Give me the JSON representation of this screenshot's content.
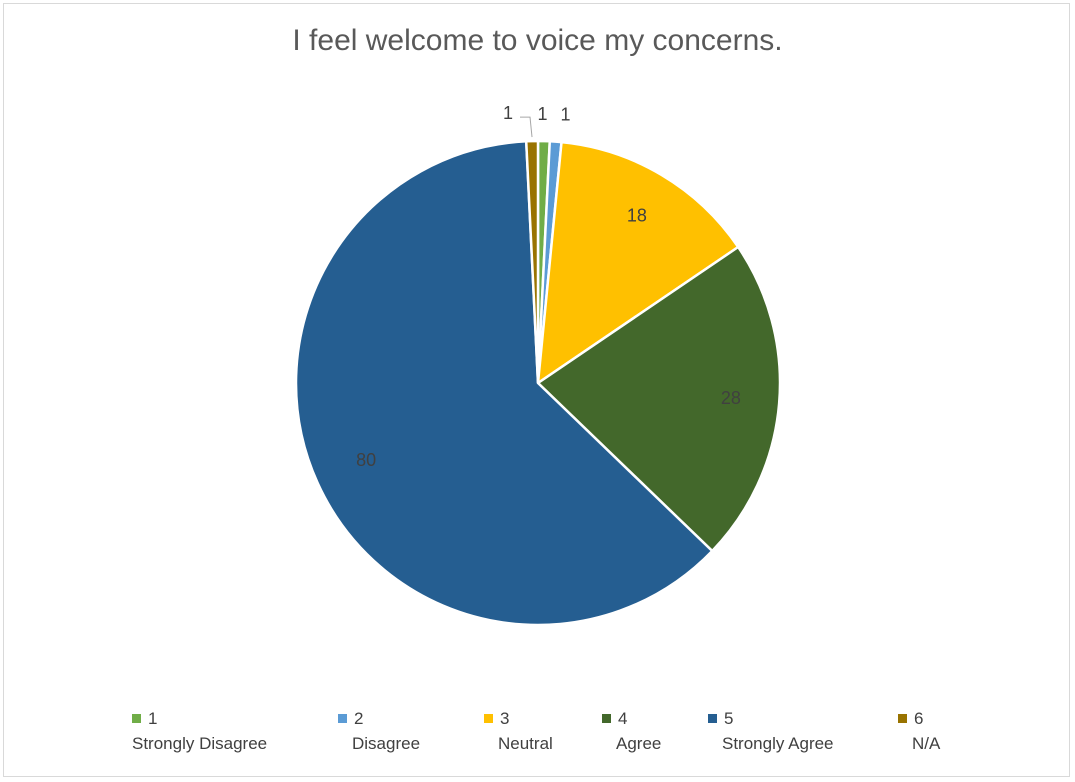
{
  "chart_data": {
    "type": "pie",
    "title": "I feel welcome to voice my concerns.",
    "slices": [
      {
        "label": "1\nStrongly Disagree",
        "code": "1",
        "desc": "Strongly Disagree",
        "value": 1,
        "color": "#70ad47"
      },
      {
        "label": "2\nDisagree",
        "code": "2",
        "desc": "Disagree",
        "value": 1,
        "color": "#5b9bd5"
      },
      {
        "label": "3\nNeutral",
        "code": "3",
        "desc": "Neutral",
        "value": 18,
        "color": "#ffc000"
      },
      {
        "label": "4\nAgree",
        "code": "4",
        "desc": "Agree",
        "value": 28,
        "color": "#43682b"
      },
      {
        "label": "5\nStrongly Agree",
        "code": "5",
        "desc": "Strongly Agree",
        "value": 80,
        "color": "#255e91"
      },
      {
        "label": "6\nN/A",
        "code": "6",
        "desc": "N/A",
        "value": 1,
        "color": "#997300"
      }
    ],
    "legend_position": "bottom",
    "data_labels": true
  }
}
